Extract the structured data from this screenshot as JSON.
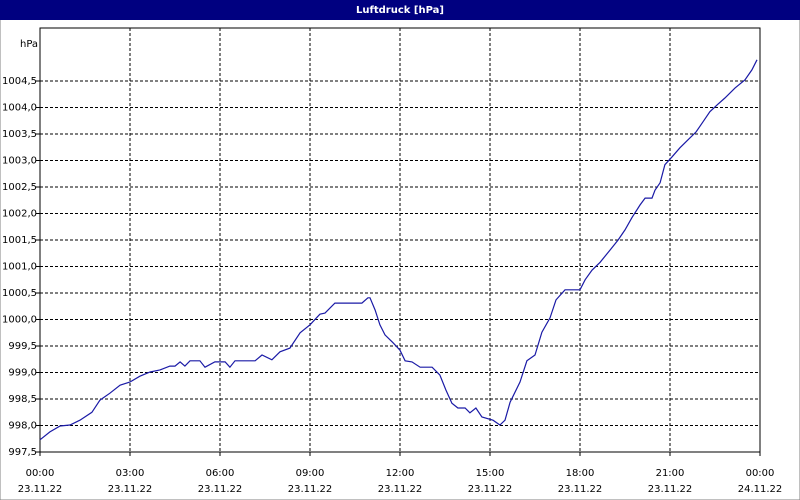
{
  "chart_data": {
    "type": "line",
    "title": "Luftdruck [hPa]",
    "y_label": "hPa",
    "x": [
      0,
      0.33,
      0.67,
      1,
      1.33,
      1.73,
      2,
      2.33,
      2.67,
      3,
      3.33,
      3.67,
      4,
      4.33,
      4.5,
      4.67,
      4.83,
      5,
      5.33,
      5.5,
      5.83,
      6.17,
      6.33,
      6.5,
      7.17,
      7.4,
      7.73,
      8,
      8.33,
      8.67,
      9,
      9.33,
      9.5,
      9.83,
      10.73,
      10.93,
      11,
      11.17,
      11.33,
      11.5,
      11.77,
      12,
      12.17,
      12.4,
      12.67,
      13.07,
      13.33,
      13.53,
      13.73,
      13.93,
      14.17,
      14.33,
      14.53,
      14.73,
      15.1,
      15.33,
      15.5,
      15.67,
      16,
      16.23,
      16.5,
      16.73,
      17,
      17.2,
      17.5,
      18,
      18.17,
      18.4,
      18.67,
      19,
      19.27,
      19.5,
      19.73,
      20,
      20.17,
      20.4,
      20.5,
      20.67,
      20.83,
      21.07,
      21.33,
      21.6,
      21.87,
      22.1,
      22.33,
      22.57,
      22.83,
      23.17,
      23.5,
      23.73,
      23.9
    ],
    "series": [
      {
        "name": "Luftdruck",
        "color": "#1a1aa6",
        "values": [
          997.73,
          997.88,
          997.99,
          998.01,
          998.1,
          998.25,
          998.48,
          998.61,
          998.76,
          998.82,
          998.93,
          999.01,
          999.05,
          999.12,
          999.12,
          999.2,
          999.12,
          999.22,
          999.22,
          999.1,
          999.2,
          999.2,
          999.1,
          999.22,
          999.22,
          999.33,
          999.24,
          999.39,
          999.46,
          999.75,
          999.9,
          1000.1,
          1000.12,
          1000.31,
          1000.31,
          1000.41,
          1000.41,
          1000.18,
          999.9,
          999.71,
          999.56,
          999.42,
          999.22,
          999.2,
          999.1,
          999.1,
          998.95,
          998.67,
          998.42,
          998.33,
          998.33,
          998.24,
          998.33,
          998.16,
          998.1,
          998.01,
          998.1,
          998.44,
          998.82,
          999.22,
          999.33,
          999.76,
          1000.03,
          1000.37,
          1000.56,
          1000.56,
          1000.75,
          1000.93,
          1001.08,
          1001.31,
          1001.5,
          1001.69,
          1001.92,
          1002.16,
          1002.29,
          1002.29,
          1002.44,
          1002.58,
          1002.92,
          1003.07,
          1003.24,
          1003.39,
          1003.54,
          1003.73,
          1003.92,
          1004.05,
          1004.18,
          1004.37,
          1004.52,
          1004.71,
          1004.9
        ]
      }
    ],
    "xlim": [
      0,
      24
    ],
    "ylim": [
      997.5,
      1005.5
    ],
    "xticks": [
      {
        "value": 0,
        "label": "00:00",
        "date": "23.11.22"
      },
      {
        "value": 3,
        "label": "03:00",
        "date": "23.11.22"
      },
      {
        "value": 6,
        "label": "06:00",
        "date": "23.11.22"
      },
      {
        "value": 9,
        "label": "09:00",
        "date": "23.11.22"
      },
      {
        "value": 12,
        "label": "12:00",
        "date": "23.11.22"
      },
      {
        "value": 15,
        "label": "15:00",
        "date": "23.11.22"
      },
      {
        "value": 18,
        "label": "18:00",
        "date": "23.11.22"
      },
      {
        "value": 21,
        "label": "21:00",
        "date": "23.11.22"
      },
      {
        "value": 24,
        "label": "00:00",
        "date": "24.11.22"
      }
    ],
    "yticks": [
      {
        "value": 997.5,
        "label": "997,5"
      },
      {
        "value": 998,
        "label": "998,0"
      },
      {
        "value": 998.5,
        "label": "998,5"
      },
      {
        "value": 999,
        "label": "999,0"
      },
      {
        "value": 999.5,
        "label": "999,5"
      },
      {
        "value": 1000,
        "label": "1000,0"
      },
      {
        "value": 1000.5,
        "label": "1000,5"
      },
      {
        "value": 1001,
        "label": "1001,0"
      },
      {
        "value": 1001.5,
        "label": "1001,5"
      },
      {
        "value": 1002,
        "label": "1002,0"
      },
      {
        "value": 1002.5,
        "label": "1002,5"
      },
      {
        "value": 1003,
        "label": "1003,0"
      },
      {
        "value": 1003.5,
        "label": "1003,5"
      },
      {
        "value": 1004,
        "label": "1004,0"
      },
      {
        "value": 1004.5,
        "label": "1004,5"
      }
    ],
    "grid": true
  }
}
